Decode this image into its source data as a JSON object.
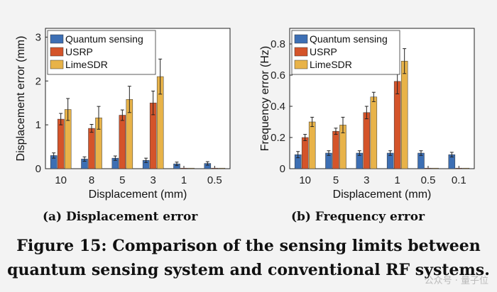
{
  "chart_data": [
    {
      "type": "bar",
      "xlabel": "Displacement (mm)",
      "ylabel": "Displacement error (mm)",
      "ylim": [
        0,
        3.2
      ],
      "yticks": [
        0,
        1,
        2,
        3
      ],
      "categories": [
        "10",
        "8",
        "5",
        "3",
        "1",
        "0.5"
      ],
      "legend_position": "top-left",
      "series": [
        {
          "name": "Quantum sensing",
          "color": "#3d6fb4",
          "values": [
            0.3,
            0.22,
            0.24,
            0.19,
            0.11,
            0.12
          ],
          "errors": [
            0.06,
            0.05,
            0.05,
            0.05,
            0.04,
            0.04
          ]
        },
        {
          "name": "USRP",
          "color": "#d4542a",
          "values": [
            1.13,
            0.92,
            1.22,
            1.5,
            0,
            0
          ],
          "errors": [
            0.13,
            0.09,
            0.12,
            0.27,
            0,
            0
          ]
        },
        {
          "name": "LimeSDR",
          "color": "#e8b349",
          "values": [
            1.35,
            1.16,
            1.58,
            2.1,
            0,
            0
          ],
          "errors": [
            0.25,
            0.26,
            0.3,
            0.4,
            0,
            0
          ]
        }
      ]
    },
    {
      "type": "bar",
      "xlabel": "Displacement (mm)",
      "ylabel": "Frequency error (Hz)",
      "ylim": [
        0,
        0.9
      ],
      "yticks": [
        0,
        0.2,
        0.4,
        0.6,
        0.8
      ],
      "categories": [
        "10",
        "5",
        "3",
        "1",
        "0.5",
        "0.1"
      ],
      "legend_position": "top-left",
      "series": [
        {
          "name": "Quantum sensing",
          "color": "#3d6fb4",
          "values": [
            0.09,
            0.1,
            0.1,
            0.1,
            0.1,
            0.09
          ],
          "errors": [
            0.02,
            0.015,
            0.015,
            0.015,
            0.015,
            0.015
          ]
        },
        {
          "name": "USRP",
          "color": "#d4542a",
          "values": [
            0.2,
            0.24,
            0.36,
            0.56,
            0,
            0
          ],
          "errors": [
            0.02,
            0.02,
            0.04,
            0.08,
            0,
            0
          ]
        },
        {
          "name": "LimeSDR",
          "color": "#e8b349",
          "values": [
            0.3,
            0.28,
            0.46,
            0.69,
            0,
            0
          ],
          "errors": [
            0.03,
            0.05,
            0.03,
            0.08,
            0,
            0
          ]
        }
      ]
    }
  ],
  "captions": {
    "a": "(a) Displacement error",
    "b": "(b) Frequency error",
    "figure": "Figure 15: Comparison of the sensing limits between quantum sensing system and conventional RF systems."
  },
  "watermark": "公众号 · 量子位"
}
